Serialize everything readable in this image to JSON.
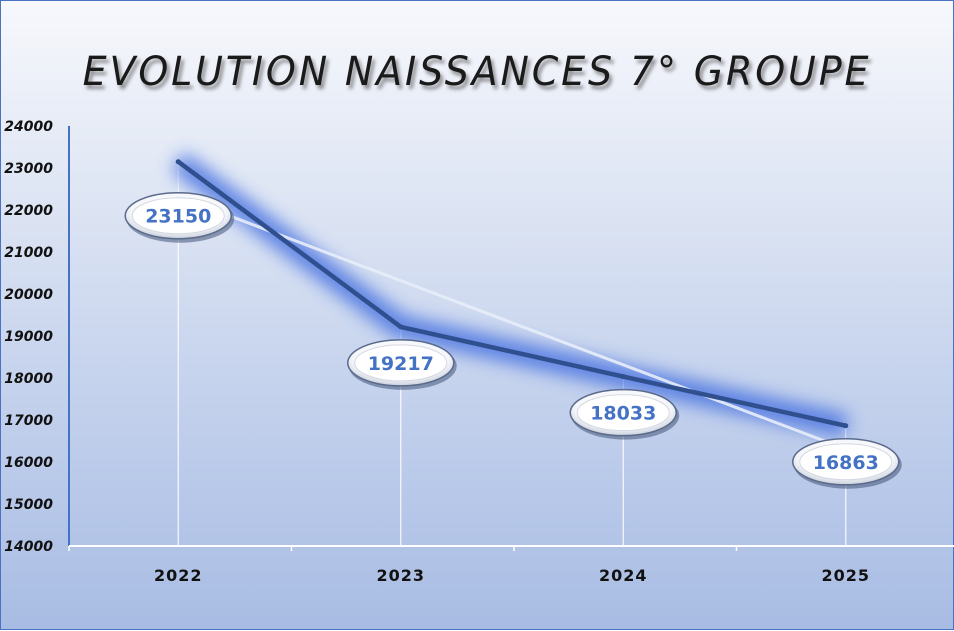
{
  "chart_data": {
    "type": "line",
    "title": "EVOLUTION NAISSANCES 7° GROUPE",
    "categories": [
      "2022",
      "2023",
      "2024",
      "2025"
    ],
    "values": [
      23150,
      19217,
      18033,
      16863
    ],
    "data_labels": [
      "23150",
      "19217",
      "18033",
      "16863"
    ],
    "ylim": [
      14000,
      24000
    ],
    "yticks": [
      "14000",
      "15000",
      "16000",
      "17000",
      "18000",
      "19000",
      "20000",
      "21000",
      "22000",
      "23000",
      "24000"
    ],
    "xlabel": "",
    "ylabel": "",
    "trendline": "linear",
    "grid": false,
    "legend": "none",
    "colors": {
      "line": "#2f4f8f",
      "glow": "#3d6be0",
      "trendline": "#e8eefa",
      "label_text": "#4472c4",
      "axis": "#4472c4"
    }
  }
}
